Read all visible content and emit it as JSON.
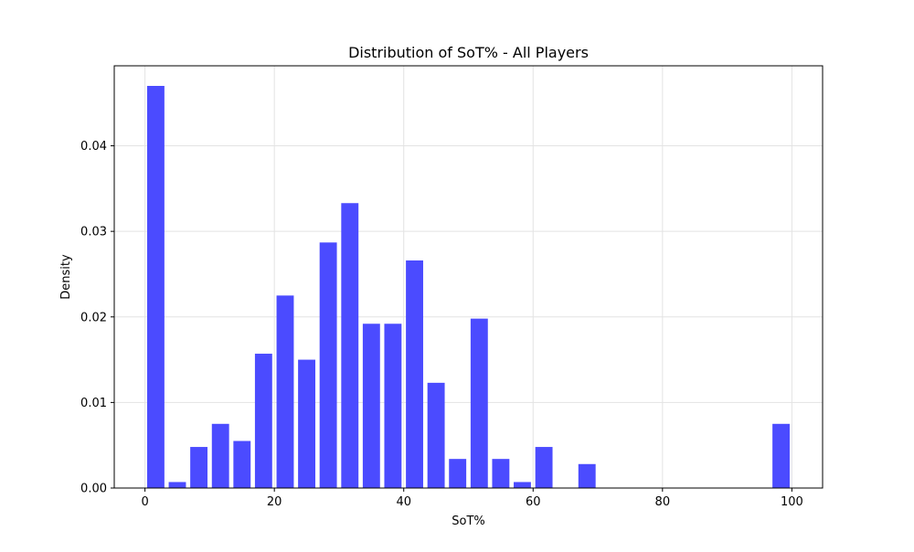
{
  "chart_data": {
    "type": "bar",
    "title": "Distribution of SoT% - All Players",
    "xlabel": "SoT%",
    "ylabel": "Density",
    "xlim": [
      -4.75,
      104.75
    ],
    "ylim": [
      0,
      0.04935
    ],
    "xticks": [
      0,
      20,
      40,
      60,
      80,
      100
    ],
    "yticks": [
      0.0,
      0.01,
      0.02,
      0.03,
      0.04
    ],
    "xtick_labels": [
      "0",
      "20",
      "40",
      "60",
      "80",
      "100"
    ],
    "ytick_labels": [
      "0.00",
      "0.01",
      "0.02",
      "0.03",
      "0.04"
    ],
    "grid": true,
    "bin_width": 3.333,
    "bar_color": "#4b4bff",
    "bars": [
      {
        "x": 1.67,
        "value": 0.047
      },
      {
        "x": 5.0,
        "value": 0.0007
      },
      {
        "x": 8.33,
        "value": 0.0048
      },
      {
        "x": 11.67,
        "value": 0.0075
      },
      {
        "x": 15.0,
        "value": 0.0055
      },
      {
        "x": 18.33,
        "value": 0.0157
      },
      {
        "x": 21.67,
        "value": 0.0225
      },
      {
        "x": 25.0,
        "value": 0.015
      },
      {
        "x": 28.33,
        "value": 0.0287
      },
      {
        "x": 31.67,
        "value": 0.0333
      },
      {
        "x": 35.0,
        "value": 0.0192
      },
      {
        "x": 38.33,
        "value": 0.0192
      },
      {
        "x": 41.67,
        "value": 0.0266
      },
      {
        "x": 45.0,
        "value": 0.0123
      },
      {
        "x": 48.33,
        "value": 0.0034
      },
      {
        "x": 51.67,
        "value": 0.0198
      },
      {
        "x": 55.0,
        "value": 0.0034
      },
      {
        "x": 58.33,
        "value": 0.0007
      },
      {
        "x": 61.67,
        "value": 0.0048
      },
      {
        "x": 65.0,
        "value": 0.0
      },
      {
        "x": 68.33,
        "value": 0.0028
      },
      {
        "x": 71.67,
        "value": 0.0
      },
      {
        "x": 75.0,
        "value": 0.0
      },
      {
        "x": 78.33,
        "value": 0.0
      },
      {
        "x": 81.67,
        "value": 0.0
      },
      {
        "x": 85.0,
        "value": 0.0
      },
      {
        "x": 88.33,
        "value": 0.0
      },
      {
        "x": 91.67,
        "value": 0.0
      },
      {
        "x": 95.0,
        "value": 0.0
      },
      {
        "x": 98.33,
        "value": 0.0075
      }
    ]
  }
}
